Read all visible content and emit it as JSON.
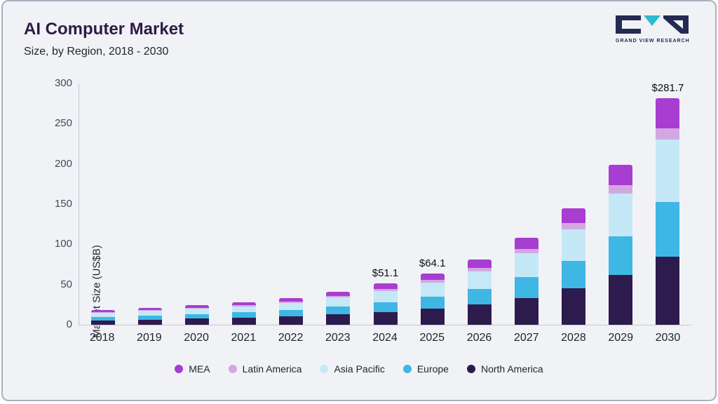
{
  "header": {
    "title": "AI Computer Market",
    "subtitle": "Size, by Region, 2018 - 2030"
  },
  "logo": {
    "text": "GRAND VIEW RESEARCH",
    "navy": "#252a52",
    "teal": "#2fb9cf"
  },
  "chart_data": {
    "type": "bar",
    "stacked": true,
    "title": "AI Computer Market Size, by Region, 2018 - 2030",
    "ylabel": "Market Size (US$B)",
    "ylim": [
      0,
      300
    ],
    "ytick_step": 50,
    "grid": false,
    "legend_position": "bottom",
    "categories": [
      "2018",
      "2019",
      "2020",
      "2021",
      "2022",
      "2023",
      "2024",
      "2025",
      "2026",
      "2027",
      "2028",
      "2029",
      "2030"
    ],
    "series": [
      {
        "name": "North America",
        "color": "#2d1b4e",
        "values": [
          5.6,
          6.5,
          7.6,
          8.7,
          10.4,
          12.7,
          15.8,
          19.9,
          25.1,
          33.5,
          45.0,
          61.7,
          85.0
        ]
      },
      {
        "name": "Europe",
        "color": "#3eb7e5",
        "values": [
          4.3,
          5.0,
          5.9,
          6.7,
          8.0,
          9.8,
          12.3,
          15.4,
          19.4,
          25.9,
          34.8,
          47.8,
          68.0
        ]
      },
      {
        "name": "Asia Pacific",
        "color": "#c5e8f7",
        "values": [
          4.9,
          5.7,
          6.6,
          7.6,
          9.0,
          11.1,
          13.8,
          17.3,
          21.9,
          29.2,
          39.2,
          53.7,
          77.0
        ]
      },
      {
        "name": "Latin America",
        "color": "#d3a8e2",
        "values": [
          0.9,
          1.1,
          1.2,
          1.4,
          1.7,
          2.1,
          2.6,
          3.2,
          4.1,
          5.4,
          7.3,
          10.0,
          14.5
        ]
      },
      {
        "name": "MEA",
        "color": "#a83dd1",
        "values": [
          2.3,
          2.7,
          3.2,
          3.6,
          4.4,
          5.3,
          6.6,
          8.3,
          10.5,
          14.0,
          18.8,
          25.8,
          37.2
        ]
      }
    ],
    "totals": {
      "2024": 51.1,
      "2025": 64.1,
      "2030": 281.7
    },
    "annotations": [
      {
        "category": "2024",
        "label": "$51.1"
      },
      {
        "category": "2025",
        "label": "$64.1"
      },
      {
        "category": "2030",
        "label": "$281.7"
      }
    ],
    "legend_order": [
      "MEA",
      "Latin America",
      "Asia Pacific",
      "Europe",
      "North America"
    ]
  }
}
